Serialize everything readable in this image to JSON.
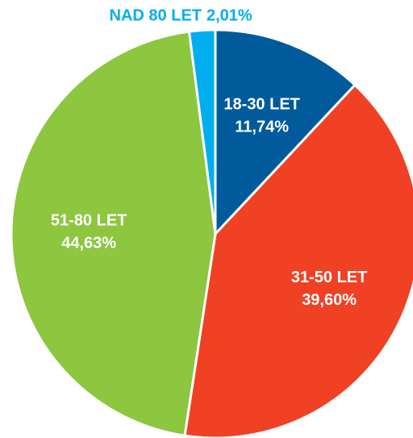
{
  "chart_data": {
    "type": "pie",
    "categories": [
      "18-30 LET",
      "31-50 LET",
      "51-80 LET",
      "NAD 80 LET"
    ],
    "values": [
      11.74,
      39.6,
      44.63,
      2.01
    ],
    "value_labels": [
      "11,74%",
      "39,60%",
      "44,63%",
      "2,01%"
    ],
    "colors": [
      "#005a9c",
      "#f04124",
      "#8dc63f",
      "#00aeef"
    ]
  }
}
